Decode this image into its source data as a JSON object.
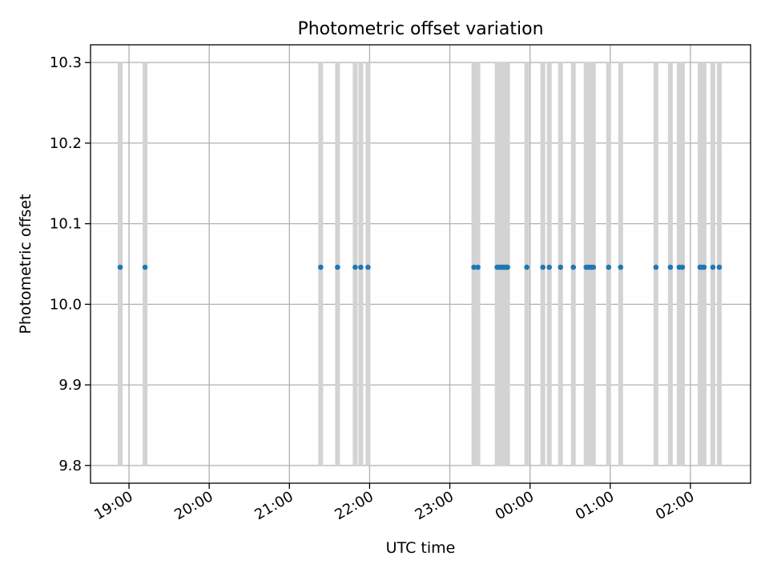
{
  "chart_data": {
    "type": "scatter",
    "title": "Photometric offset variation",
    "xlabel": "UTC time",
    "ylabel": "Photometric offset",
    "x_unit": "hours",
    "xlim": [
      18.52,
      26.75
    ],
    "ylim": [
      9.778,
      10.322
    ],
    "x_ticks": [
      {
        "value": 19,
        "label": "19:00"
      },
      {
        "value": 20,
        "label": "20:00"
      },
      {
        "value": 21,
        "label": "21:00"
      },
      {
        "value": 22,
        "label": "22:00"
      },
      {
        "value": 23,
        "label": "23:00"
      },
      {
        "value": 24,
        "label": "00:00"
      },
      {
        "value": 25,
        "label": "01:00"
      },
      {
        "value": 26,
        "label": "02:00"
      }
    ],
    "y_ticks": [
      {
        "value": 9.8,
        "label": "9.8"
      },
      {
        "value": 9.9,
        "label": "9.9"
      },
      {
        "value": 10.0,
        "label": "10.0"
      },
      {
        "value": 10.1,
        "label": "10.1"
      },
      {
        "value": 10.2,
        "label": "10.2"
      },
      {
        "value": 10.3,
        "label": "10.3"
      }
    ],
    "grid": true,
    "error_bar": {
      "low": 9.8,
      "high": 10.3
    },
    "offset_value": 10.046,
    "x": [
      18.89,
      19.2,
      21.39,
      21.6,
      21.82,
      21.89,
      21.98,
      23.3,
      23.35,
      23.59,
      23.62,
      23.64,
      23.66,
      23.68,
      23.7,
      23.72,
      23.96,
      24.16,
      24.24,
      24.38,
      24.54,
      24.7,
      24.73,
      24.76,
      24.79,
      24.98,
      25.13,
      25.57,
      25.75,
      25.86,
      25.9,
      26.12,
      26.14,
      26.17,
      26.28,
      26.36
    ]
  }
}
